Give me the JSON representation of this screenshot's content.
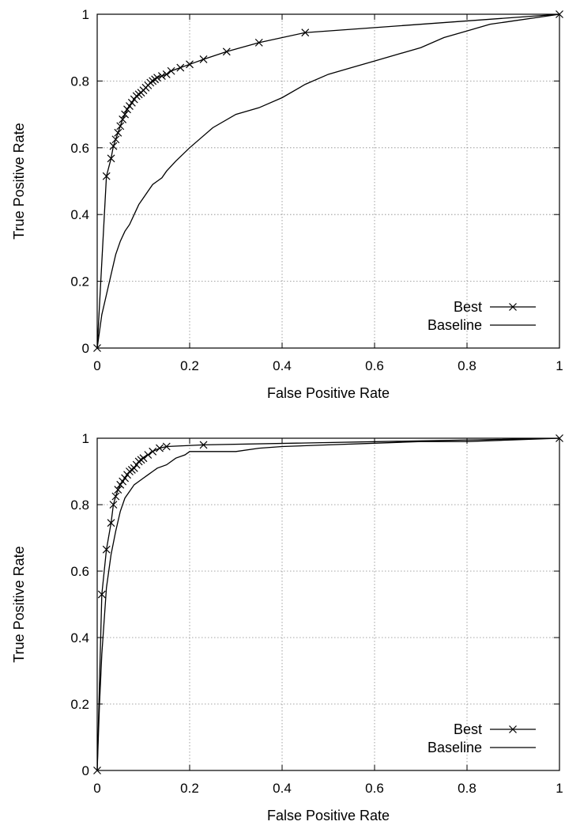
{
  "chart_data": [
    {
      "type": "line",
      "xlabel": "False Positive Rate",
      "ylabel": "True Positive Rate",
      "xlim": [
        0,
        1
      ],
      "ylim": [
        0,
        1
      ],
      "x_ticks": [
        "0",
        "0.2",
        "0.4",
        "0.6",
        "0.8",
        "1"
      ],
      "y_ticks": [
        "0",
        "0.2",
        "0.4",
        "0.6",
        "0.8",
        "1"
      ],
      "grid": true,
      "legend_position": "bottom-right",
      "series": [
        {
          "name": "Best",
          "marker": "x",
          "x": [
            0.0,
            0.02,
            0.03,
            0.035,
            0.04,
            0.045,
            0.05,
            0.055,
            0.06,
            0.065,
            0.07,
            0.075,
            0.08,
            0.085,
            0.09,
            0.095,
            0.1,
            0.105,
            0.11,
            0.115,
            0.12,
            0.125,
            0.13,
            0.14,
            0.15,
            0.16,
            0.18,
            0.2,
            0.23,
            0.28,
            0.35,
            0.45,
            1.0
          ],
          "y": [
            0.0,
            0.515,
            0.568,
            0.605,
            0.625,
            0.645,
            0.665,
            0.685,
            0.7,
            0.715,
            0.725,
            0.735,
            0.745,
            0.755,
            0.76,
            0.765,
            0.772,
            0.78,
            0.787,
            0.795,
            0.8,
            0.805,
            0.81,
            0.815,
            0.82,
            0.83,
            0.84,
            0.85,
            0.865,
            0.888,
            0.915,
            0.945,
            1.0
          ]
        },
        {
          "name": "Baseline",
          "marker": "none",
          "x": [
            0.0,
            0.005,
            0.01,
            0.02,
            0.03,
            0.04,
            0.05,
            0.06,
            0.07,
            0.08,
            0.09,
            0.1,
            0.11,
            0.12,
            0.13,
            0.14,
            0.15,
            0.17,
            0.2,
            0.25,
            0.3,
            0.35,
            0.4,
            0.45,
            0.5,
            0.55,
            0.6,
            0.65,
            0.7,
            0.75,
            0.8,
            0.85,
            0.9,
            0.95,
            1.0
          ],
          "y": [
            0.0,
            0.05,
            0.1,
            0.16,
            0.22,
            0.28,
            0.32,
            0.35,
            0.37,
            0.4,
            0.43,
            0.45,
            0.47,
            0.49,
            0.5,
            0.51,
            0.53,
            0.56,
            0.6,
            0.66,
            0.7,
            0.72,
            0.75,
            0.79,
            0.82,
            0.84,
            0.86,
            0.88,
            0.9,
            0.93,
            0.95,
            0.97,
            0.98,
            0.99,
            1.0
          ]
        }
      ]
    },
    {
      "type": "line",
      "xlabel": "False Positive Rate",
      "ylabel": "True Positive Rate",
      "xlim": [
        0,
        1
      ],
      "ylim": [
        0,
        1
      ],
      "x_ticks": [
        "0",
        "0.2",
        "0.4",
        "0.6",
        "0.8",
        "1"
      ],
      "y_ticks": [
        "0",
        "0.2",
        "0.4",
        "0.6",
        "0.8",
        "1"
      ],
      "grid": true,
      "legend_position": "bottom-right",
      "series": [
        {
          "name": "Best",
          "marker": "x",
          "x": [
            0.0,
            0.01,
            0.02,
            0.03,
            0.035,
            0.04,
            0.045,
            0.05,
            0.055,
            0.06,
            0.065,
            0.07,
            0.075,
            0.08,
            0.085,
            0.09,
            0.095,
            0.1,
            0.11,
            0.12,
            0.135,
            0.15,
            0.23,
            1.0
          ],
          "y": [
            0.0,
            0.53,
            0.665,
            0.745,
            0.8,
            0.825,
            0.845,
            0.86,
            0.87,
            0.88,
            0.89,
            0.9,
            0.905,
            0.91,
            0.92,
            0.93,
            0.935,
            0.94,
            0.95,
            0.96,
            0.97,
            0.975,
            0.98,
            1.0
          ]
        },
        {
          "name": "Baseline",
          "marker": "none",
          "x": [
            0.0,
            0.005,
            0.01,
            0.02,
            0.03,
            0.04,
            0.05,
            0.06,
            0.07,
            0.08,
            0.09,
            0.1,
            0.11,
            0.12,
            0.13,
            0.15,
            0.17,
            0.19,
            0.2,
            0.25,
            0.3,
            0.35,
            0.4,
            0.5,
            0.6,
            0.7,
            0.8,
            0.9,
            1.0
          ],
          "y": [
            0.0,
            0.2,
            0.35,
            0.55,
            0.65,
            0.72,
            0.78,
            0.82,
            0.84,
            0.86,
            0.87,
            0.88,
            0.89,
            0.9,
            0.91,
            0.92,
            0.94,
            0.95,
            0.96,
            0.96,
            0.96,
            0.97,
            0.975,
            0.98,
            0.985,
            0.99,
            0.99,
            0.995,
            1.0
          ]
        }
      ]
    }
  ]
}
